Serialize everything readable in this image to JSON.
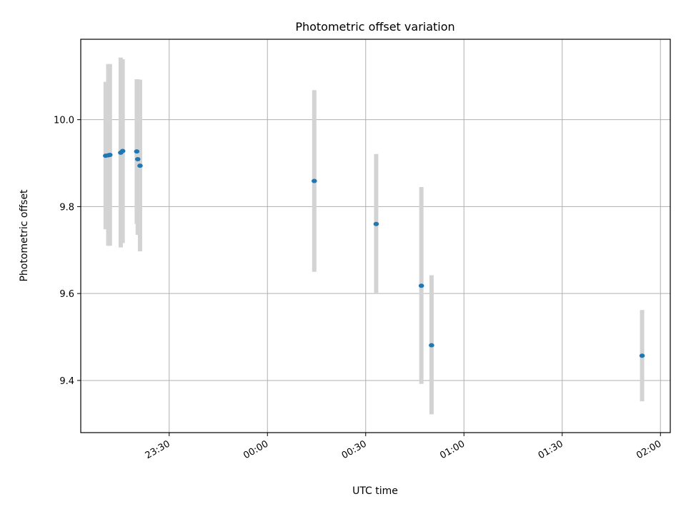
{
  "chart_data": {
    "type": "scatter",
    "title": "Photometric offset variation",
    "xlabel": "UTC time",
    "ylabel": "Photometric offset",
    "x_tick_labels": [
      "23:30",
      "00:00",
      "00:30",
      "01:00",
      "01:30",
      "02:00"
    ],
    "x_tick_values": [
      -30,
      0,
      30,
      60,
      90,
      120
    ],
    "y_ticks": [
      9.4,
      9.6,
      9.8,
      10.0
    ],
    "xlim": [
      -57,
      123
    ],
    "ylim": [
      9.28,
      10.185
    ],
    "grid": true,
    "marker_color": "#1f77b4",
    "errorbar_color": "#d3d3d3",
    "points": [
      {
        "x": -49.4,
        "y": 9.917,
        "err_low": 9.748,
        "err_high": 10.087
      },
      {
        "x": -48.6,
        "y": 9.918,
        "err_low": 9.71,
        "err_high": 10.128
      },
      {
        "x": -48.1,
        "y": 9.919,
        "err_low": 9.71,
        "err_high": 10.128
      },
      {
        "x": -44.8,
        "y": 9.924,
        "err_low": 9.706,
        "err_high": 10.143
      },
      {
        "x": -44.2,
        "y": 9.928,
        "err_low": 9.716,
        "err_high": 10.139
      },
      {
        "x": -39.9,
        "y": 9.927,
        "err_low": 9.76,
        "err_high": 10.093
      },
      {
        "x": -39.6,
        "y": 9.909,
        "err_low": 9.735,
        "err_high": 10.093
      },
      {
        "x": -38.9,
        "y": 9.894,
        "err_low": 9.697,
        "err_high": 10.092
      },
      {
        "x": 14.3,
        "y": 9.859,
        "err_low": 9.65,
        "err_high": 10.068
      },
      {
        "x": 33.2,
        "y": 9.76,
        "err_low": 9.6,
        "err_high": 9.921
      },
      {
        "x": 47.0,
        "y": 9.618,
        "err_low": 9.392,
        "err_high": 9.845
      },
      {
        "x": 50.1,
        "y": 9.481,
        "err_low": 9.322,
        "err_high": 9.642
      },
      {
        "x": 114.4,
        "y": 9.457,
        "err_low": 9.352,
        "err_high": 9.562
      }
    ]
  }
}
